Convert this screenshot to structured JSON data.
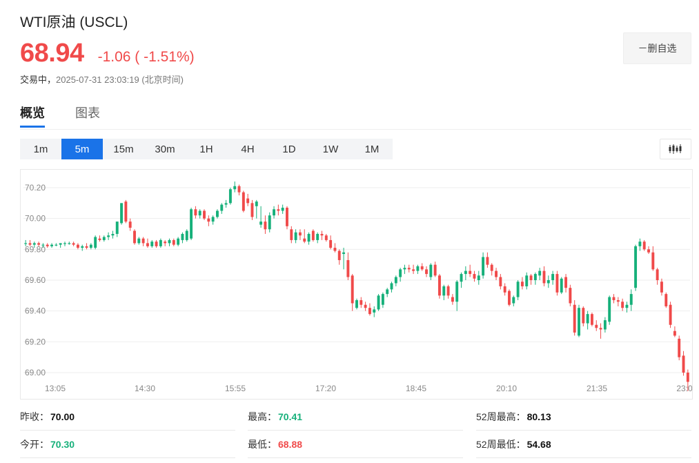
{
  "header": {
    "title": "WTI原油 (USCL)",
    "price": "68.94",
    "change": "-1.06 ( -1.51%)",
    "status_label": "交易中，",
    "timestamp": "2025-07-31 23:03:19 (北京时间)",
    "watch_button": "－删自选"
  },
  "tabs": [
    {
      "label": "概览",
      "active": true
    },
    {
      "label": "图表",
      "active": false
    }
  ],
  "intervals": [
    {
      "label": "1m"
    },
    {
      "label": "5m",
      "active": true
    },
    {
      "label": "15m"
    },
    {
      "label": "30m"
    },
    {
      "label": "1H"
    },
    {
      "label": "4H"
    },
    {
      "label": "1D"
    },
    {
      "label": "1W"
    },
    {
      "label": "1M"
    }
  ],
  "colors": {
    "up": "#16b07a",
    "down": "#f04a4a",
    "accent": "#1a73e8"
  },
  "chart_data": {
    "type": "candlestick",
    "y_ticks": [
      "70.20",
      "70.00",
      "69.80",
      "69.60",
      "69.40",
      "69.20",
      "69.00"
    ],
    "x_ticks": [
      "13:05",
      "14:30",
      "15:55",
      "17:20",
      "18:45",
      "20:10",
      "21:35",
      "23:0"
    ],
    "ylim": [
      68.88,
      70.45
    ],
    "grid": true,
    "candles": [
      [
        69.84,
        69.86,
        69.82,
        69.84
      ],
      [
        69.84,
        69.86,
        69.82,
        69.83
      ],
      [
        69.83,
        69.85,
        69.81,
        69.84
      ],
      [
        69.84,
        69.85,
        69.82,
        69.83
      ],
      [
        69.83,
        69.84,
        69.81,
        69.83
      ],
      [
        69.83,
        69.84,
        69.81,
        69.82
      ],
      [
        69.82,
        69.84,
        69.81,
        69.83
      ],
      [
        69.83,
        69.84,
        69.82,
        69.83
      ],
      [
        69.83,
        69.84,
        69.81,
        69.84
      ],
      [
        69.84,
        69.85,
        69.82,
        69.84
      ],
      [
        69.84,
        69.85,
        69.83,
        69.84
      ],
      [
        69.84,
        69.85,
        69.82,
        69.83
      ],
      [
        69.83,
        69.84,
        69.8,
        69.81
      ],
      [
        69.81,
        69.83,
        69.79,
        69.82
      ],
      [
        69.82,
        69.84,
        69.8,
        69.81
      ],
      [
        69.81,
        69.84,
        69.8,
        69.83
      ],
      [
        69.81,
        69.89,
        69.8,
        69.88
      ],
      [
        69.87,
        69.89,
        69.85,
        69.86
      ],
      [
        69.86,
        69.89,
        69.85,
        69.88
      ],
      [
        69.88,
        69.91,
        69.86,
        69.89
      ],
      [
        69.89,
        69.92,
        69.87,
        69.9
      ],
      [
        69.9,
        69.98,
        69.88,
        69.98
      ],
      [
        69.97,
        70.1,
        69.96,
        70.1
      ],
      [
        70.11,
        70.12,
        69.97,
        69.98
      ],
      [
        69.98,
        70.0,
        69.92,
        69.94
      ],
      [
        69.92,
        69.93,
        69.83,
        69.84
      ],
      [
        69.84,
        69.88,
        69.83,
        69.87
      ],
      [
        69.87,
        69.88,
        69.82,
        69.84
      ],
      [
        69.84,
        69.87,
        69.81,
        69.82
      ],
      [
        69.82,
        69.86,
        69.81,
        69.85
      ],
      [
        69.85,
        69.86,
        69.81,
        69.82
      ],
      [
        69.82,
        69.87,
        69.81,
        69.86
      ],
      [
        69.85,
        69.86,
        69.82,
        69.84
      ],
      [
        69.84,
        69.87,
        69.82,
        69.86
      ],
      [
        69.86,
        69.87,
        69.82,
        69.83
      ],
      [
        69.83,
        69.88,
        69.82,
        69.87
      ],
      [
        69.86,
        69.91,
        69.84,
        69.9
      ],
      [
        69.86,
        69.93,
        69.85,
        69.92
      ],
      [
        69.87,
        70.07,
        69.86,
        70.06
      ],
      [
        70.06,
        70.08,
        70.0,
        70.02
      ],
      [
        70.02,
        70.06,
        70.0,
        70.05
      ],
      [
        70.05,
        70.06,
        69.99,
        70.0
      ],
      [
        70.0,
        70.02,
        69.95,
        69.98
      ],
      [
        69.98,
        70.02,
        69.96,
        70.01
      ],
      [
        70.01,
        70.06,
        70.0,
        70.05
      ],
      [
        70.05,
        70.1,
        70.03,
        70.09
      ],
      [
        70.09,
        70.12,
        70.07,
        70.1
      ],
      [
        70.1,
        70.2,
        70.09,
        70.19
      ],
      [
        70.19,
        70.24,
        70.17,
        70.21
      ],
      [
        70.21,
        70.22,
        70.15,
        70.17
      ],
      [
        70.17,
        70.18,
        70.04,
        70.05
      ],
      [
        70.13,
        70.16,
        70.08,
        70.1
      ],
      [
        70.1,
        70.12,
        69.99,
        70.01
      ],
      [
        70.08,
        70.12,
        70.0,
        70.11
      ],
      [
        69.96,
        70.08,
        69.94,
        69.98
      ],
      [
        69.98,
        70.02,
        69.9,
        69.93
      ],
      [
        69.93,
        70.04,
        69.91,
        70.02
      ],
      [
        70.02,
        70.08,
        70.0,
        70.06
      ],
      [
        70.06,
        70.09,
        70.02,
        70.05
      ],
      [
        70.05,
        70.09,
        70.03,
        70.07
      ],
      [
        70.07,
        70.08,
        69.93,
        69.95
      ],
      [
        69.93,
        69.95,
        69.84,
        69.86
      ],
      [
        69.86,
        69.93,
        69.84,
        69.91
      ],
      [
        69.91,
        69.93,
        69.86,
        69.89
      ],
      [
        69.87,
        69.93,
        69.84,
        69.85
      ],
      [
        69.85,
        69.91,
        69.83,
        69.9
      ],
      [
        69.92,
        69.93,
        69.85,
        69.86
      ],
      [
        69.86,
        69.91,
        69.84,
        69.9
      ],
      [
        69.9,
        69.92,
        69.86,
        69.89
      ],
      [
        69.89,
        69.9,
        69.85,
        69.86
      ],
      [
        69.86,
        69.89,
        69.8,
        69.81
      ],
      [
        69.81,
        69.84,
        69.78,
        69.79
      ],
      [
        69.79,
        69.8,
        69.7,
        69.73
      ],
      [
        69.77,
        69.81,
        69.67,
        69.78
      ],
      [
        69.73,
        69.78,
        69.6,
        69.62
      ],
      [
        69.63,
        69.64,
        69.4,
        69.45
      ],
      [
        69.42,
        69.48,
        69.41,
        69.47
      ],
      [
        69.47,
        69.49,
        69.42,
        69.44
      ],
      [
        69.44,
        69.46,
        69.4,
        69.42
      ],
      [
        69.42,
        69.45,
        69.37,
        69.38
      ],
      [
        69.39,
        69.43,
        69.36,
        69.41
      ],
      [
        69.41,
        69.51,
        69.4,
        69.5
      ],
      [
        69.44,
        69.52,
        69.42,
        69.51
      ],
      [
        69.51,
        69.55,
        69.49,
        69.54
      ],
      [
        69.54,
        69.59,
        69.52,
        69.58
      ],
      [
        69.58,
        69.63,
        69.56,
        69.62
      ],
      [
        69.62,
        69.68,
        69.59,
        69.67
      ],
      [
        69.67,
        69.7,
        69.64,
        69.68
      ],
      [
        69.68,
        69.7,
        69.65,
        69.67
      ],
      [
        69.67,
        69.7,
        69.64,
        69.66
      ],
      [
        69.66,
        69.7,
        69.64,
        69.69
      ],
      [
        69.69,
        69.71,
        69.66,
        69.67
      ],
      [
        69.67,
        69.69,
        69.62,
        69.64
      ],
      [
        69.62,
        69.71,
        69.6,
        69.7
      ],
      [
        69.7,
        69.72,
        69.62,
        69.63
      ],
      [
        69.63,
        69.64,
        69.48,
        69.5
      ],
      [
        69.5,
        69.57,
        69.47,
        69.56
      ],
      [
        69.56,
        69.57,
        69.48,
        69.5
      ],
      [
        69.49,
        69.51,
        69.44,
        69.46
      ],
      [
        69.46,
        69.6,
        69.4,
        69.59
      ],
      [
        69.59,
        69.65,
        69.55,
        69.64
      ],
      [
        69.64,
        69.69,
        69.6,
        69.66
      ],
      [
        69.66,
        69.7,
        69.62,
        69.64
      ],
      [
        69.64,
        69.66,
        69.59,
        69.61
      ],
      [
        69.6,
        69.66,
        69.57,
        69.63
      ],
      [
        69.63,
        69.78,
        69.61,
        69.75
      ],
      [
        69.75,
        69.78,
        69.68,
        69.7
      ],
      [
        69.7,
        69.71,
        69.63,
        69.66
      ],
      [
        69.66,
        69.68,
        69.6,
        69.62
      ],
      [
        69.62,
        69.64,
        69.54,
        69.56
      ],
      [
        69.56,
        69.58,
        69.5,
        69.52
      ],
      [
        69.53,
        69.54,
        69.43,
        69.44
      ],
      [
        69.45,
        69.5,
        69.43,
        69.49
      ],
      [
        69.49,
        69.6,
        69.47,
        69.59
      ],
      [
        69.59,
        69.62,
        69.54,
        69.56
      ],
      [
        69.56,
        69.65,
        69.54,
        69.63
      ],
      [
        69.63,
        69.64,
        69.57,
        69.6
      ],
      [
        69.6,
        69.65,
        69.57,
        69.64
      ],
      [
        69.63,
        69.68,
        69.6,
        69.66
      ],
      [
        69.66,
        69.69,
        69.56,
        69.58
      ],
      [
        69.58,
        69.63,
        69.55,
        69.6
      ],
      [
        69.6,
        69.66,
        69.57,
        69.64
      ],
      [
        69.64,
        69.66,
        69.5,
        69.52
      ],
      [
        69.52,
        69.62,
        69.51,
        69.61
      ],
      [
        69.62,
        69.64,
        69.52,
        69.55
      ],
      [
        69.55,
        69.57,
        69.43,
        69.45
      ],
      [
        69.44,
        69.47,
        69.24,
        69.26
      ],
      [
        69.24,
        69.44,
        69.23,
        69.42
      ],
      [
        69.42,
        69.43,
        69.3,
        69.32
      ],
      [
        69.32,
        69.4,
        69.28,
        69.38
      ],
      [
        69.38,
        69.39,
        69.3,
        69.31
      ],
      [
        69.31,
        69.34,
        69.27,
        69.29
      ],
      [
        69.29,
        69.32,
        69.22,
        69.28
      ],
      [
        69.28,
        69.36,
        69.26,
        69.34
      ],
      [
        69.33,
        69.5,
        69.31,
        69.49
      ],
      [
        69.49,
        69.51,
        69.45,
        69.47
      ],
      [
        69.47,
        69.49,
        69.43,
        69.46
      ],
      [
        69.46,
        69.48,
        69.4,
        69.42
      ],
      [
        69.42,
        69.46,
        69.39,
        69.44
      ],
      [
        69.44,
        69.54,
        69.4,
        69.51
      ],
      [
        69.55,
        69.83,
        69.53,
        69.82
      ],
      [
        69.82,
        69.87,
        69.79,
        69.85
      ],
      [
        69.85,
        69.86,
        69.79,
        69.8
      ],
      [
        69.8,
        69.82,
        69.77,
        69.78
      ],
      [
        69.78,
        69.82,
        69.66,
        69.67
      ],
      [
        69.67,
        69.68,
        69.57,
        69.6
      ],
      [
        69.59,
        69.61,
        69.5,
        69.52
      ],
      [
        69.51,
        69.52,
        69.42,
        69.43
      ],
      [
        69.44,
        69.46,
        69.29,
        69.31
      ],
      [
        69.27,
        69.3,
        69.23,
        69.24
      ],
      [
        69.22,
        69.24,
        69.08,
        69.1
      ],
      [
        69.11,
        69.14,
        68.98,
        69.0
      ],
      [
        69.0,
        69.02,
        68.88,
        68.94
      ]
    ]
  },
  "stats": [
    [
      {
        "label": "昨收：",
        "value": "70.00",
        "tone": "neutral"
      },
      {
        "label": "最高：",
        "value": "70.41",
        "tone": "up"
      },
      {
        "label": "52周最高：",
        "value": "80.13",
        "tone": "neutral"
      }
    ],
    [
      {
        "label": "今开：",
        "value": "70.30",
        "tone": "up"
      },
      {
        "label": "最低：",
        "value": "68.88",
        "tone": "down"
      },
      {
        "label": "52周最低：",
        "value": "54.68",
        "tone": "neutral"
      }
    ]
  ]
}
